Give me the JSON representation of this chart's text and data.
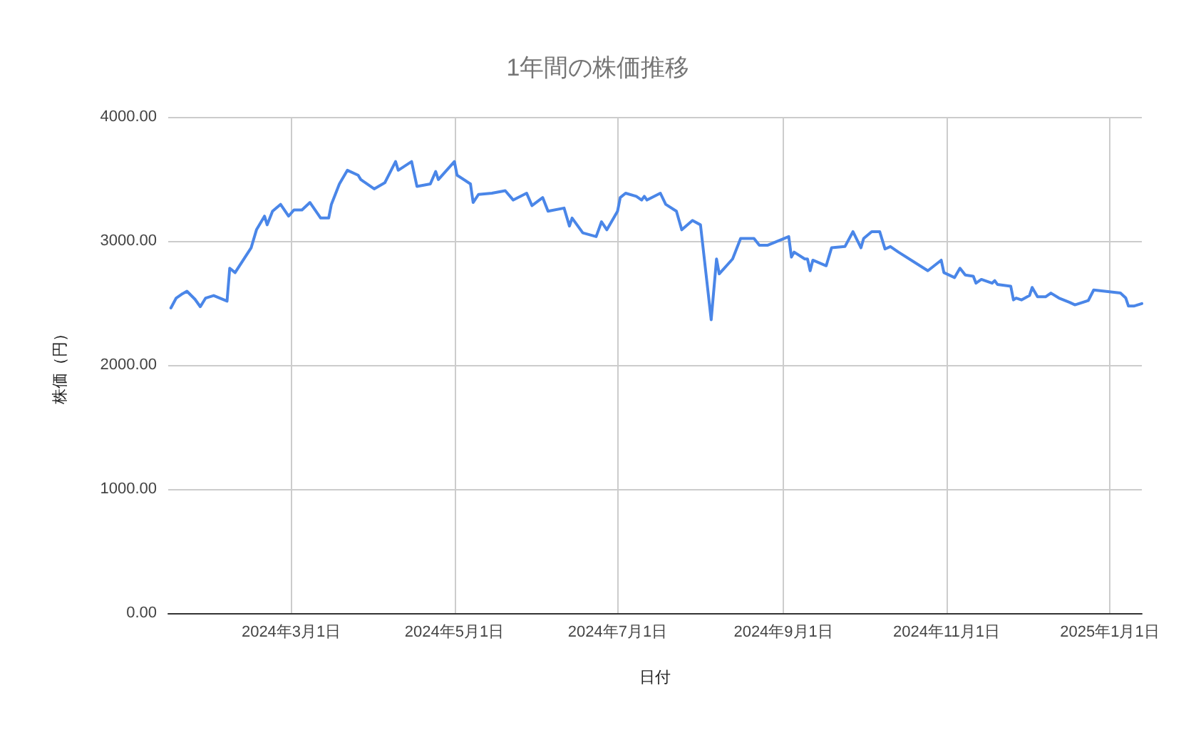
{
  "chart_data": {
    "type": "line",
    "title": "1年間の株価推移",
    "xlabel": "日付",
    "ylabel": "株価（円）",
    "xlim": [
      "2024-01-15",
      "2025-01-13"
    ],
    "xticks": [
      {
        "value": "2024-03-01",
        "label": "2024年3月1日"
      },
      {
        "value": "2024-05-01",
        "label": "2024年5月1日"
      },
      {
        "value": "2024-07-01",
        "label": "2024年7月1日"
      },
      {
        "value": "2024-09-01",
        "label": "2024年9月1日"
      },
      {
        "value": "2024-11-01",
        "label": "2024年11月1日"
      },
      {
        "value": "2025-01-01",
        "label": "2025年1月1日"
      }
    ],
    "ylim": [
      0,
      4000
    ],
    "yticks": [
      {
        "value": 0,
        "label": "0.00"
      },
      {
        "value": 1000,
        "label": "1000.00"
      },
      {
        "value": 2000,
        "label": "2000.00"
      },
      {
        "value": 3000,
        "label": "3000.00"
      },
      {
        "value": 4000,
        "label": "4000.00"
      }
    ],
    "grid": true,
    "marker": "none",
    "line_style": "solid",
    "series": [
      {
        "color": "#4a86e8",
        "x": [
          "2024-01-16",
          "2024-01-18",
          "2024-01-20",
          "2024-01-22",
          "2024-01-25",
          "2024-01-27",
          "2024-01-29",
          "2024-02-01",
          "2024-02-06",
          "2024-02-07",
          "2024-02-09",
          "2024-02-15",
          "2024-02-17",
          "2024-02-20",
          "2024-02-21",
          "2024-02-23",
          "2024-02-26",
          "2024-02-29",
          "2024-03-02",
          "2024-03-05",
          "2024-03-08",
          "2024-03-12",
          "2024-03-15",
          "2024-03-16",
          "2024-03-19",
          "2024-03-22",
          "2024-03-26",
          "2024-03-27",
          "2024-04-01",
          "2024-04-05",
          "2024-04-09",
          "2024-04-10",
          "2024-04-15",
          "2024-04-17",
          "2024-04-22",
          "2024-04-24",
          "2024-04-25",
          "2024-05-01",
          "2024-05-02",
          "2024-05-07",
          "2024-05-08",
          "2024-05-10",
          "2024-05-15",
          "2024-05-20",
          "2024-05-23",
          "2024-05-28",
          "2024-05-30",
          "2024-06-03",
          "2024-06-05",
          "2024-06-11",
          "2024-06-13",
          "2024-06-14",
          "2024-06-18",
          "2024-06-23",
          "2024-06-25",
          "2024-06-27",
          "2024-07-01",
          "2024-07-02",
          "2024-07-04",
          "2024-07-08",
          "2024-07-10",
          "2024-07-11",
          "2024-07-12",
          "2024-07-17",
          "2024-07-19",
          "2024-07-23",
          "2024-07-25",
          "2024-07-29",
          "2024-08-01",
          "2024-08-05",
          "2024-08-07",
          "2024-08-08",
          "2024-08-13",
          "2024-08-16",
          "2024-08-21",
          "2024-08-23",
          "2024-08-26",
          "2024-09-03",
          "2024-09-04",
          "2024-09-05",
          "2024-09-09",
          "2024-09-10",
          "2024-09-11",
          "2024-09-12",
          "2024-09-17",
          "2024-09-19",
          "2024-09-24",
          "2024-09-27",
          "2024-09-30",
          "2024-10-01",
          "2024-10-04",
          "2024-10-07",
          "2024-10-09",
          "2024-10-11",
          "2024-10-14",
          "2024-10-25",
          "2024-10-30",
          "2024-10-31",
          "2024-11-04",
          "2024-11-06",
          "2024-11-08",
          "2024-11-11",
          "2024-11-12",
          "2024-11-14",
          "2024-11-18",
          "2024-11-19",
          "2024-11-20",
          "2024-11-25",
          "2024-11-26",
          "2024-11-27",
          "2024-11-29",
          "2024-12-02",
          "2024-12-03",
          "2024-12-05",
          "2024-12-08",
          "2024-12-10",
          "2024-12-13",
          "2024-12-17",
          "2024-12-19",
          "2024-12-24",
          "2024-12-26",
          "2025-01-05",
          "2025-01-07",
          "2025-01-08",
          "2025-01-10",
          "2025-01-13"
        ],
        "values": [
          2460,
          2540,
          2570,
          2595,
          2530,
          2470,
          2540,
          2560,
          2515,
          2780,
          2745,
          2945,
          3090,
          3200,
          3130,
          3240,
          3295,
          3200,
          3250,
          3250,
          3310,
          3185,
          3185,
          3295,
          3460,
          3570,
          3530,
          3495,
          3420,
          3470,
          3640,
          3570,
          3640,
          3440,
          3460,
          3560,
          3495,
          3640,
          3530,
          3460,
          3310,
          3375,
          3385,
          3405,
          3330,
          3385,
          3285,
          3350,
          3240,
          3265,
          3120,
          3185,
          3065,
          3035,
          3155,
          3090,
          3240,
          3350,
          3385,
          3360,
          3330,
          3360,
          3330,
          3385,
          3295,
          3240,
          3090,
          3165,
          3130,
          2365,
          2855,
          2735,
          2855,
          3020,
          3020,
          2965,
          2965,
          3035,
          2870,
          2910,
          2855,
          2855,
          2760,
          2845,
          2800,
          2945,
          2955,
          3075,
          2945,
          3020,
          3075,
          3075,
          2935,
          2955,
          2910,
          2760,
          2845,
          2745,
          2705,
          2780,
          2725,
          2715,
          2660,
          2690,
          2660,
          2680,
          2650,
          2635,
          2525,
          2540,
          2525,
          2560,
          2625,
          2550,
          2550,
          2580,
          2540,
          2505,
          2485,
          2520,
          2605,
          2580,
          2540,
          2475,
          2475,
          2495
        ]
      }
    ]
  }
}
